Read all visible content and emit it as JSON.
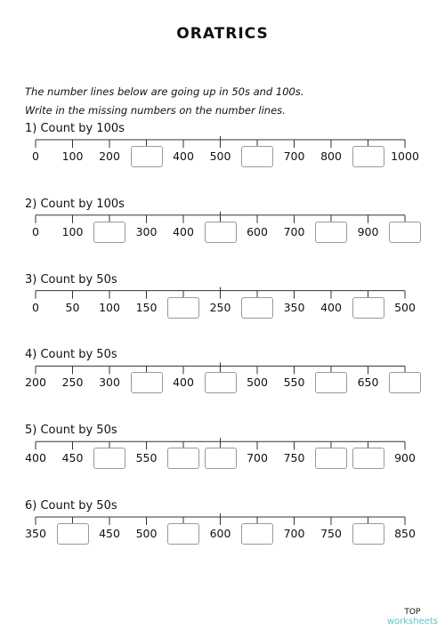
{
  "header": {
    "logo": "ORATRICS"
  },
  "instructions": [
    "The number lines below are going up in 50s and 100s.",
    "Write in the missing numbers on the number lines."
  ],
  "exercises": [
    {
      "title": "1) Count by 100s",
      "labels": [
        0,
        100,
        200,
        null,
        400,
        500,
        null,
        700,
        800,
        null,
        1000
      ]
    },
    {
      "title": "2) Count by 100s",
      "labels": [
        0,
        100,
        null,
        300,
        400,
        null,
        600,
        700,
        null,
        900,
        null
      ]
    },
    {
      "title": "3) Count by 50s",
      "labels": [
        0,
        50,
        100,
        150,
        null,
        250,
        null,
        350,
        400,
        null,
        500
      ]
    },
    {
      "title": "4) Count by 50s",
      "labels": [
        200,
        250,
        300,
        null,
        400,
        null,
        500,
        550,
        null,
        650,
        null
      ]
    },
    {
      "title": "5) Count by 50s",
      "labels": [
        400,
        450,
        null,
        550,
        null,
        null,
        700,
        750,
        null,
        null,
        900
      ]
    },
    {
      "title": "6) Count by 50s",
      "labels": [
        350,
        null,
        450,
        500,
        null,
        600,
        null,
        700,
        750,
        null,
        850
      ]
    }
  ],
  "footer": {
    "brand": "TOP",
    "sub": "worksheets"
  }
}
